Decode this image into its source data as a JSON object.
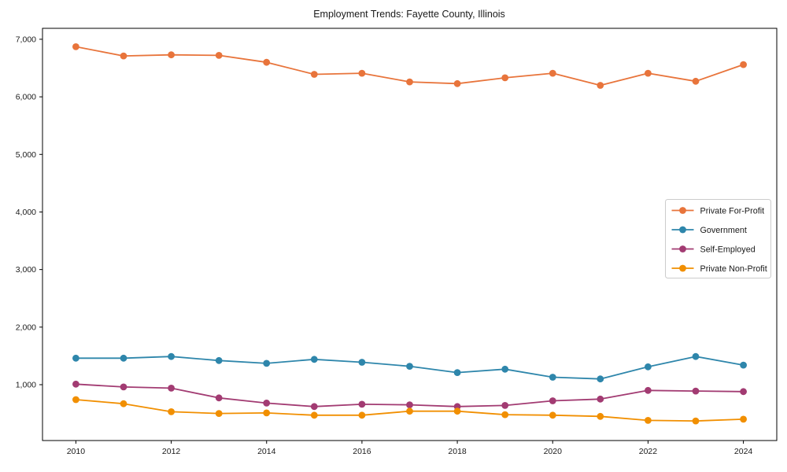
{
  "chart_data": {
    "type": "line",
    "title": "Employment Trends: Fayette County, Illinois",
    "xlabel": "",
    "ylabel": "",
    "x": [
      2010,
      2011,
      2012,
      2013,
      2014,
      2015,
      2016,
      2017,
      2018,
      2019,
      2020,
      2021,
      2022,
      2023,
      2024
    ],
    "series": [
      {
        "name": "Private For-Profit",
        "color": "#E8743B",
        "values": [
          6870,
          6710,
          6730,
          6720,
          6600,
          6390,
          6410,
          6260,
          6230,
          6330,
          6410,
          6200,
          6410,
          6270,
          6560
        ]
      },
      {
        "name": "Government",
        "color": "#2E86AB",
        "values": [
          1460,
          1460,
          1490,
          1420,
          1370,
          1440,
          1390,
          1320,
          1210,
          1270,
          1130,
          1100,
          1310,
          1490,
          1340
        ]
      },
      {
        "name": "Self-Employed",
        "color": "#A23B72",
        "values": [
          1010,
          960,
          940,
          770,
          680,
          620,
          660,
          650,
          620,
          640,
          720,
          750,
          900,
          890,
          880
        ]
      },
      {
        "name": "Private Non-Profit",
        "color": "#F18F01",
        "values": [
          740,
          670,
          530,
          500,
          510,
          470,
          470,
          540,
          540,
          480,
          470,
          450,
          380,
          370,
          400
        ]
      }
    ],
    "x_tick_labels": [
      "2010",
      "2012",
      "2014",
      "2016",
      "2018",
      "2020",
      "2022",
      "2024"
    ],
    "x_tick_values": [
      2010,
      2012,
      2014,
      2016,
      2018,
      2020,
      2022,
      2024
    ],
    "y_tick_labels": [
      "1,000",
      "2,000",
      "3,000",
      "4,000",
      "5,000",
      "6,000",
      "7,000"
    ],
    "y_tick_values": [
      1000,
      2000,
      3000,
      4000,
      5000,
      6000,
      7000
    ],
    "xlim": [
      2009.3,
      2024.7
    ],
    "ylim": [
      30,
      7190
    ],
    "grid": false,
    "marker": "circle",
    "legend_position": "right"
  }
}
